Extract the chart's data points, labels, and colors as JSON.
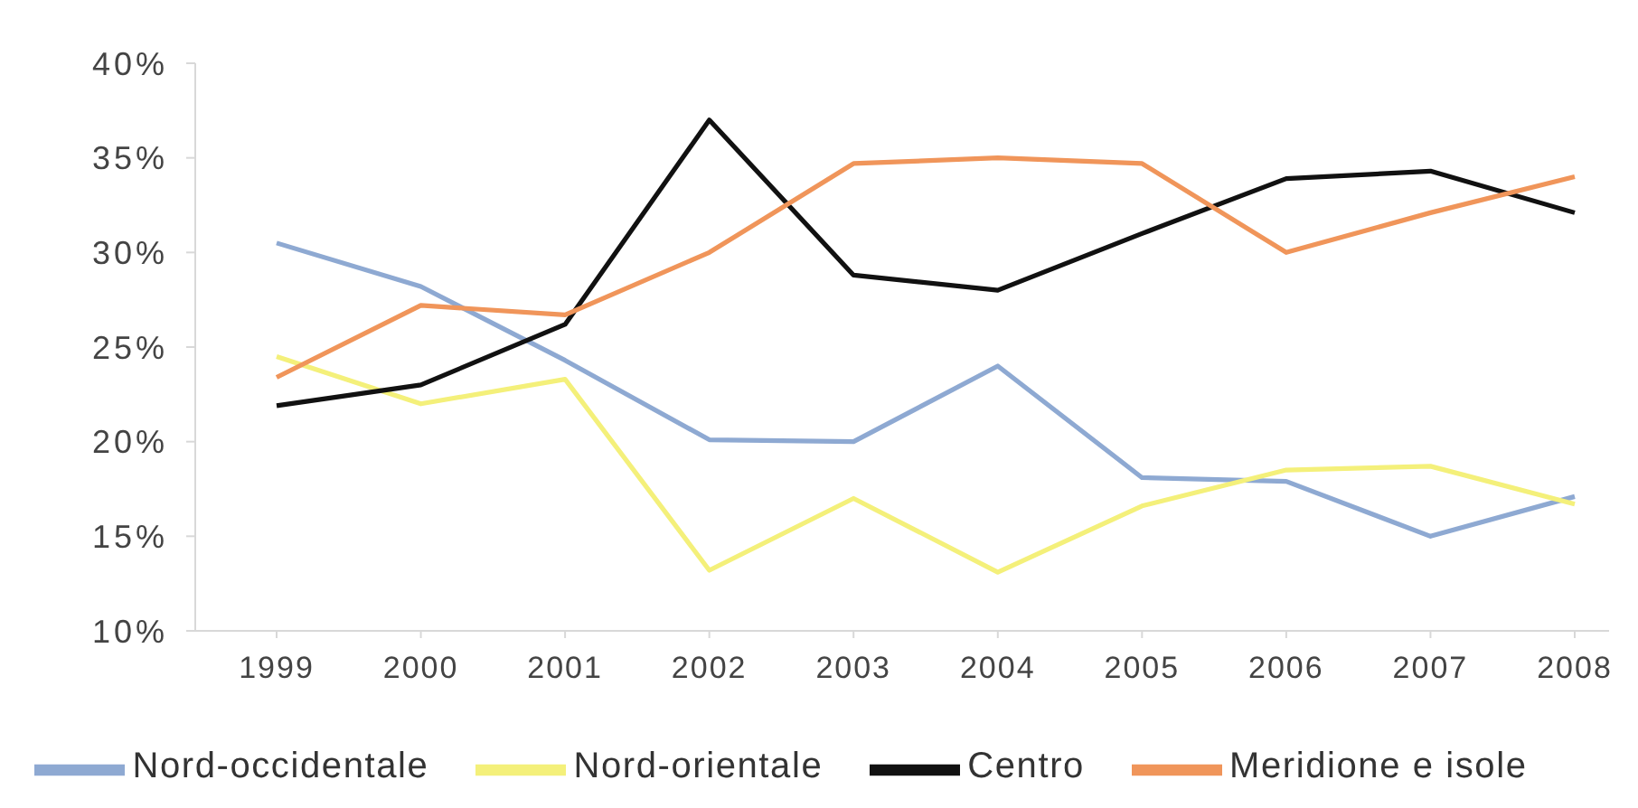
{
  "chart_data": {
    "type": "line",
    "categories": [
      "1999",
      "2000",
      "2001",
      "2002",
      "2003",
      "2004",
      "2005",
      "2006",
      "2007",
      "2008"
    ],
    "series": [
      {
        "name": "Nord-occidentale",
        "color": "#8ea9d2",
        "values": [
          30.5,
          28.2,
          24.3,
          20.1,
          20.0,
          24.0,
          18.1,
          17.9,
          15.0,
          17.1
        ]
      },
      {
        "name": "Nord-orientale",
        "color": "#f4f07a",
        "values": [
          24.5,
          22.0,
          23.3,
          13.2,
          17.0,
          13.1,
          16.6,
          18.5,
          18.7,
          16.7
        ]
      },
      {
        "name": "Centro",
        "color": "#111111",
        "values": [
          21.9,
          23.0,
          26.2,
          37.0,
          28.8,
          28.0,
          31.0,
          33.9,
          34.3,
          32.1
        ]
      },
      {
        "name": "Meridione e isole",
        "color": "#f0955a",
        "values": [
          23.4,
          27.2,
          26.7,
          30.0,
          34.7,
          35.0,
          34.7,
          30.0,
          32.1,
          34.0
        ]
      }
    ],
    "ylim": [
      10,
      40
    ],
    "yticks": [
      {
        "value": 10,
        "label": "10%"
      },
      {
        "value": 15,
        "label": "15%"
      },
      {
        "value": 20,
        "label": "20%"
      },
      {
        "value": 25,
        "label": "25%"
      },
      {
        "value": 30,
        "label": "30%"
      },
      {
        "value": 35,
        "label": "35%"
      },
      {
        "value": 40,
        "label": "40%"
      }
    ],
    "legend": "bottom",
    "marker": "none",
    "line_style": "solid"
  }
}
